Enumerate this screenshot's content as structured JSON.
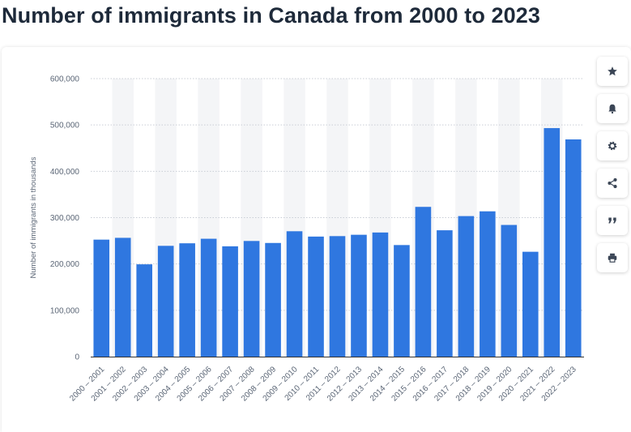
{
  "page": {
    "title": "Number of immigrants in Canada from 2000 to 2023"
  },
  "toolbar": {
    "buttons": [
      {
        "icon": "star-icon",
        "name": "favorite-button"
      },
      {
        "icon": "bell-icon",
        "name": "notification-button"
      },
      {
        "icon": "gear-icon",
        "name": "settings-button"
      },
      {
        "icon": "share-icon",
        "name": "share-button"
      },
      {
        "icon": "quote-icon",
        "name": "cite-button"
      },
      {
        "icon": "print-icon",
        "name": "print-button"
      }
    ]
  },
  "colors": {
    "bar": "#2f77e0",
    "band": "#f4f5f7",
    "grid": "#c9ced6",
    "text": "#5b6676",
    "axis": "#333333"
  },
  "chart_data": {
    "type": "bar",
    "title": "",
    "xlabel": "",
    "ylabel": "Number of immigrants in thousands",
    "ylim": [
      0,
      600000
    ],
    "yticks": [
      0,
      100000,
      200000,
      300000,
      400000,
      500000,
      600000
    ],
    "ytick_labels": [
      "0",
      "100,000",
      "200,000",
      "300,000",
      "400,000",
      "500,000",
      "600,000"
    ],
    "categories": [
      "2000 – 2001",
      "2001 – 2002",
      "2002 – 2003",
      "2003 – 2004",
      "2004 – 2005",
      "2005 – 2006",
      "2006 – 2007",
      "2007 – 2008",
      "2008 – 2009",
      "2009 – 2010",
      "2010 – 2011",
      "2011 – 2012",
      "2012 – 2013",
      "2013 – 2014",
      "2014 – 2015",
      "2015 – 2016",
      "2016 – 2017",
      "2017 – 2018",
      "2018 – 2019",
      "2019 – 2020",
      "2020 – 2021",
      "2021 – 2022",
      "2022 – 2023"
    ],
    "values": [
      252500,
      256400,
      199200,
      239100,
      244600,
      254400,
      238100,
      249600,
      245300,
      270600,
      259100,
      260100,
      263000,
      267900,
      240800,
      323200,
      272700,
      303300,
      313600,
      284200,
      226300,
      493200,
      468800
    ],
    "grid": true
  }
}
